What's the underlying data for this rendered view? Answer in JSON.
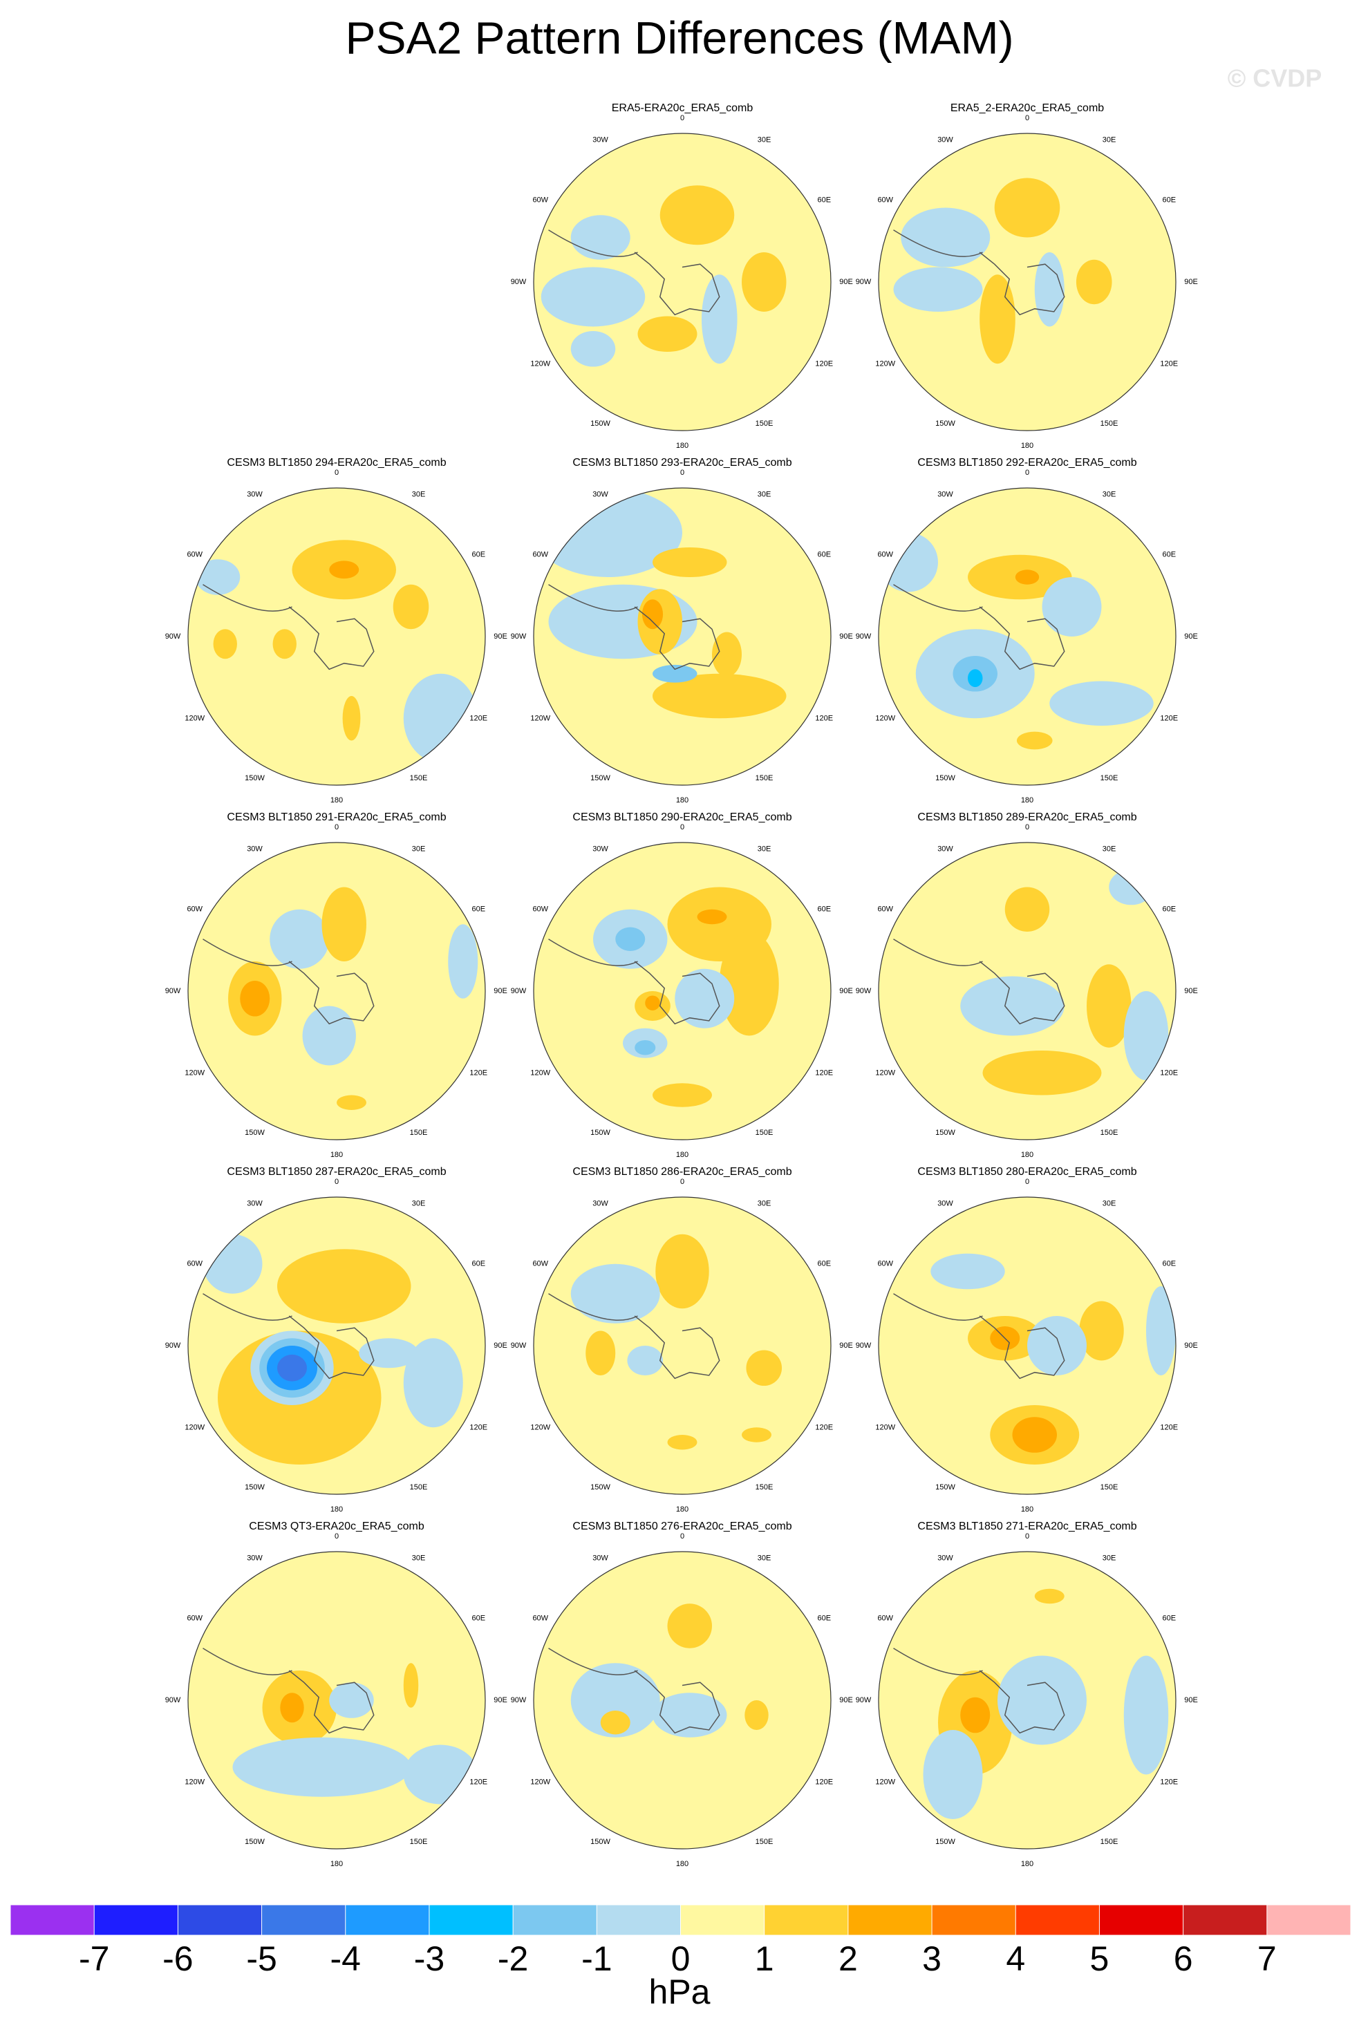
{
  "chart_data": {
    "type": "polar-map-grid",
    "title": "PSA2 Pattern Differences (MAM)",
    "watermark": "© CVDP",
    "lon_labels": [
      "0",
      "30E",
      "60E",
      "90E",
      "120E",
      "150E",
      "180",
      "150W",
      "120W",
      "90W",
      "60W",
      "30W"
    ],
    "panels": [
      {
        "title": "ERA5-ERA20c_ERA5_comb"
      },
      {
        "title": "ERA5_2-ERA20c_ERA5_comb"
      },
      {
        "title": "CESM3 BLT1850 294-ERA20c_ERA5_comb"
      },
      {
        "title": "CESM3 BLT1850 293-ERA20c_ERA5_comb"
      },
      {
        "title": "CESM3 BLT1850 292-ERA20c_ERA5_comb"
      },
      {
        "title": "CESM3 BLT1850 291-ERA20c_ERA5_comb"
      },
      {
        "title": "CESM3 BLT1850 290-ERA20c_ERA5_comb"
      },
      {
        "title": "CESM3 BLT1850 289-ERA20c_ERA5_comb"
      },
      {
        "title": "CESM3 BLT1850 287-ERA20c_ERA5_comb"
      },
      {
        "title": "CESM3 BLT1850 286-ERA20c_ERA5_comb"
      },
      {
        "title": "CESM3 BLT1850 280-ERA20c_ERA5_comb"
      },
      {
        "title": "CESM3 QT3-ERA20c_ERA5_comb"
      },
      {
        "title": "CESM3 BLT1850 276-ERA20c_ERA5_comb"
      },
      {
        "title": "CESM3 BLT1850 271-ERA20c_ERA5_comb"
      }
    ],
    "colorbar": {
      "colors": [
        "#9b30f0",
        "#1e1eff",
        "#2d4be6",
        "#3a78e8",
        "#1e9bff",
        "#00bfff",
        "#7cc8f0",
        "#b4dcf0",
        "#fff8a0",
        "#ffd232",
        "#ffaa00",
        "#ff7a00",
        "#ff3c00",
        "#e60000",
        "#c81e1e",
        "#ffb4b4"
      ],
      "ticks": [
        -7,
        -6,
        -5,
        -4,
        -3,
        -2,
        -1,
        0,
        1,
        2,
        3,
        4,
        5,
        6,
        7
      ],
      "label": "hPa"
    }
  }
}
